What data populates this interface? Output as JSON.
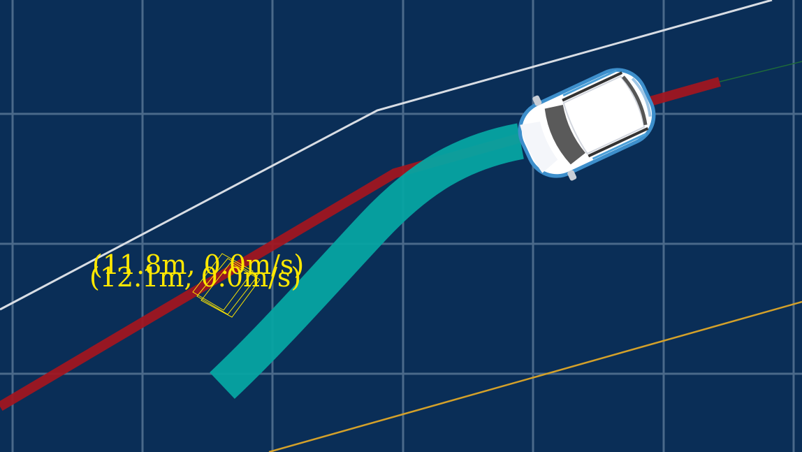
{
  "scene": {
    "background_color": "#0a2e57",
    "grid_color": "#7f9ab5",
    "boundary_left_color": "#d8dde4",
    "boundary_right_color": "#d4a12a",
    "reference_line_color": "#a3161f",
    "planned_path_color": "#06a4a2",
    "obstacle_color": "#ffe800"
  },
  "obstacle": {
    "label_1": "(11.8m, 0.0m/s)",
    "label_2": "(12.1m, 0.0m/s)"
  },
  "ego_vehicle": {
    "icon": "car-top-view-icon",
    "body_color": "#ffffff",
    "trim_color": "#4a9fd8"
  }
}
